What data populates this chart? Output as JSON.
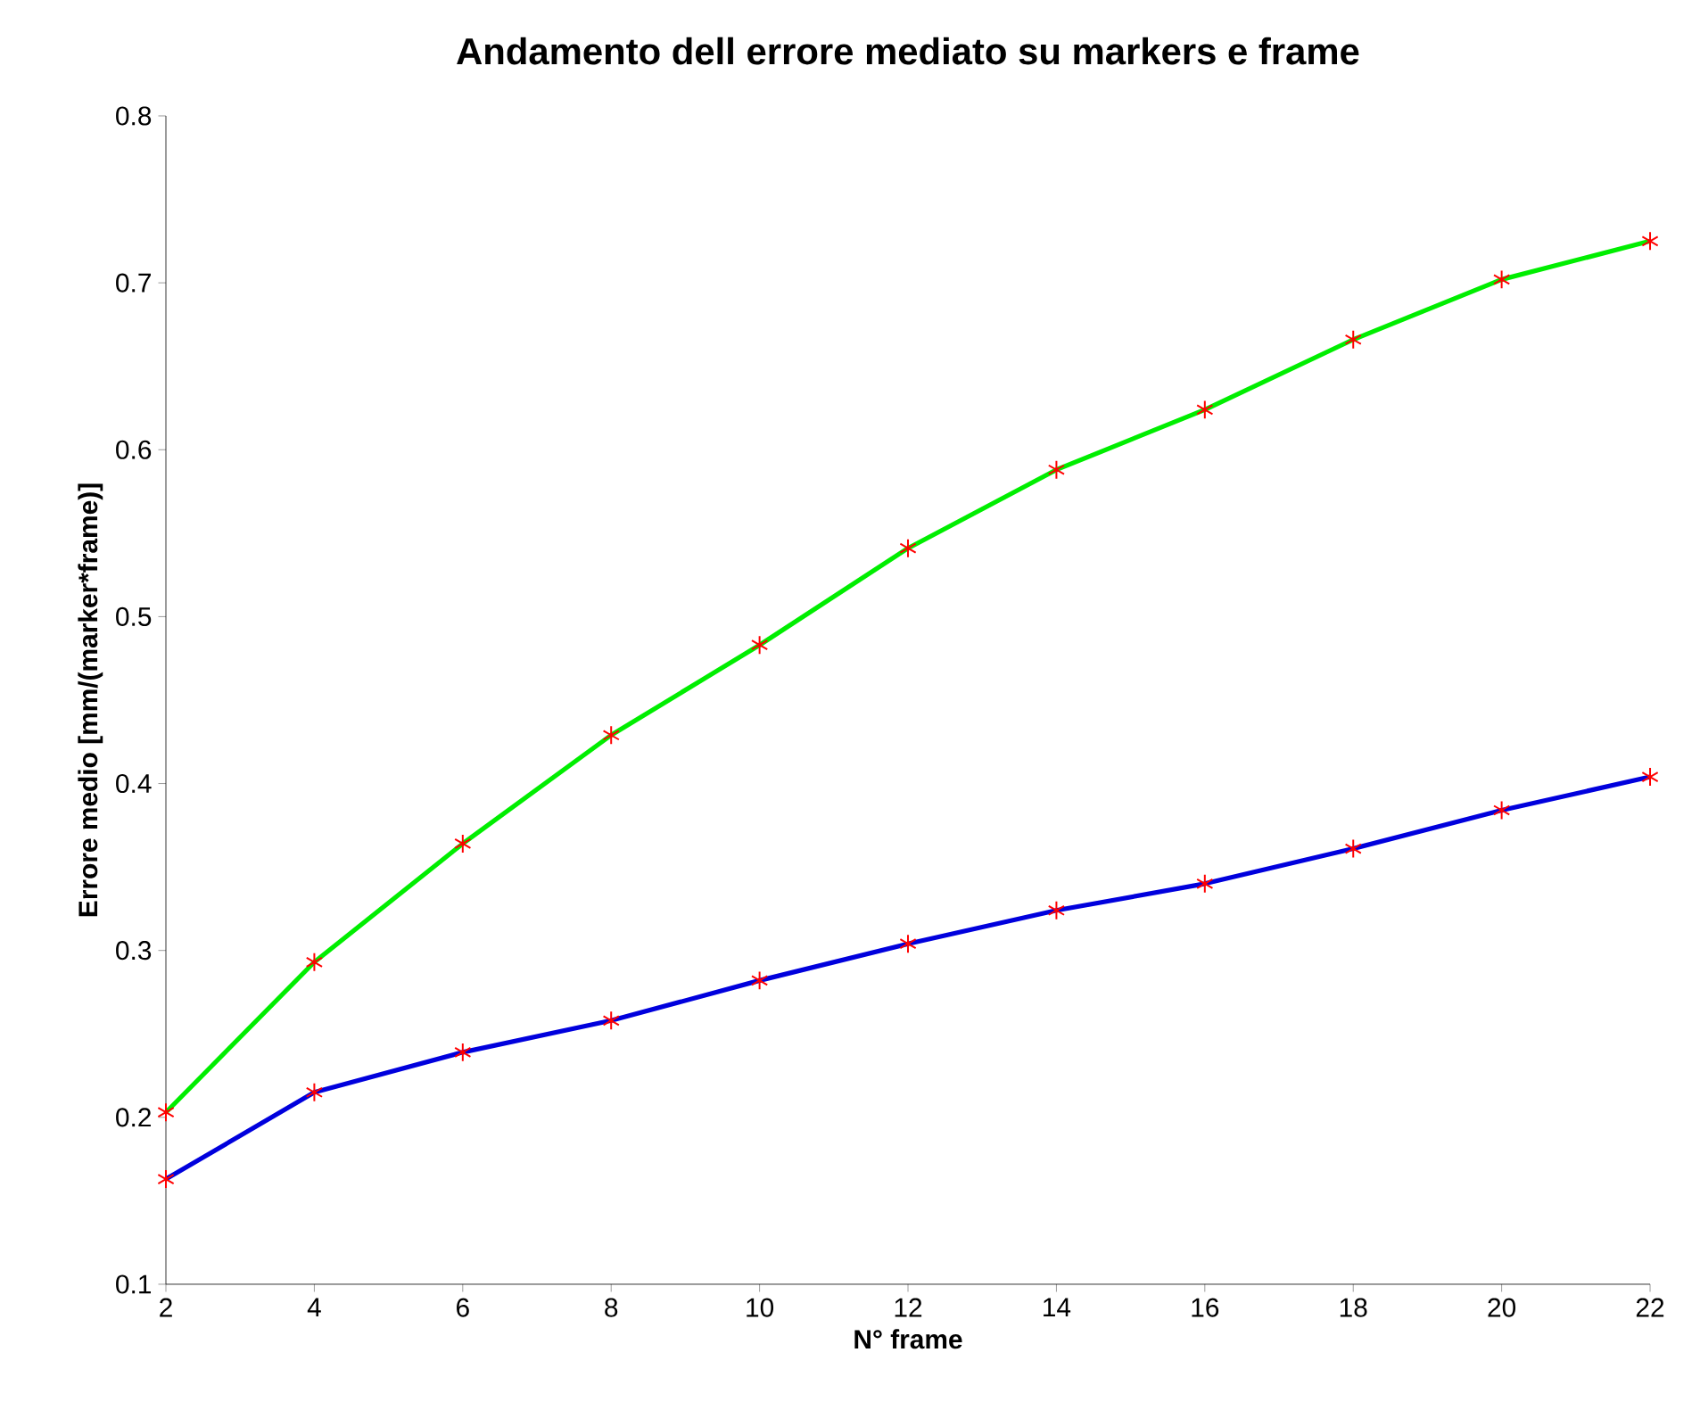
{
  "chart_data": {
    "type": "line",
    "title": "Andamento dell errore mediato su markers e frame",
    "xlabel": "N° frame",
    "ylabel": "Errore medio [mm/(marker*frame)]",
    "x": [
      2,
      4,
      6,
      8,
      10,
      12,
      14,
      16,
      18,
      20,
      22
    ],
    "series": [
      {
        "color": "#00ee00",
        "values": [
          0.203,
          0.293,
          0.364,
          0.429,
          0.483,
          0.541,
          0.588,
          0.624,
          0.666,
          0.702,
          0.725
        ]
      },
      {
        "color": "#0000dd",
        "values": [
          0.163,
          0.215,
          0.239,
          0.258,
          0.282,
          0.304,
          0.324,
          0.34,
          0.361,
          0.384,
          0.404
        ]
      }
    ],
    "xlim": [
      2,
      22
    ],
    "ylim": [
      0.1,
      0.8
    ],
    "xticks": [
      2,
      4,
      6,
      8,
      10,
      12,
      14,
      16,
      18,
      20,
      22
    ],
    "yticks": [
      0.1,
      0.2,
      0.3,
      0.4,
      0.5,
      0.6,
      0.7,
      0.8
    ],
    "marker": "cross",
    "line_style": "solid",
    "grid": false
  }
}
